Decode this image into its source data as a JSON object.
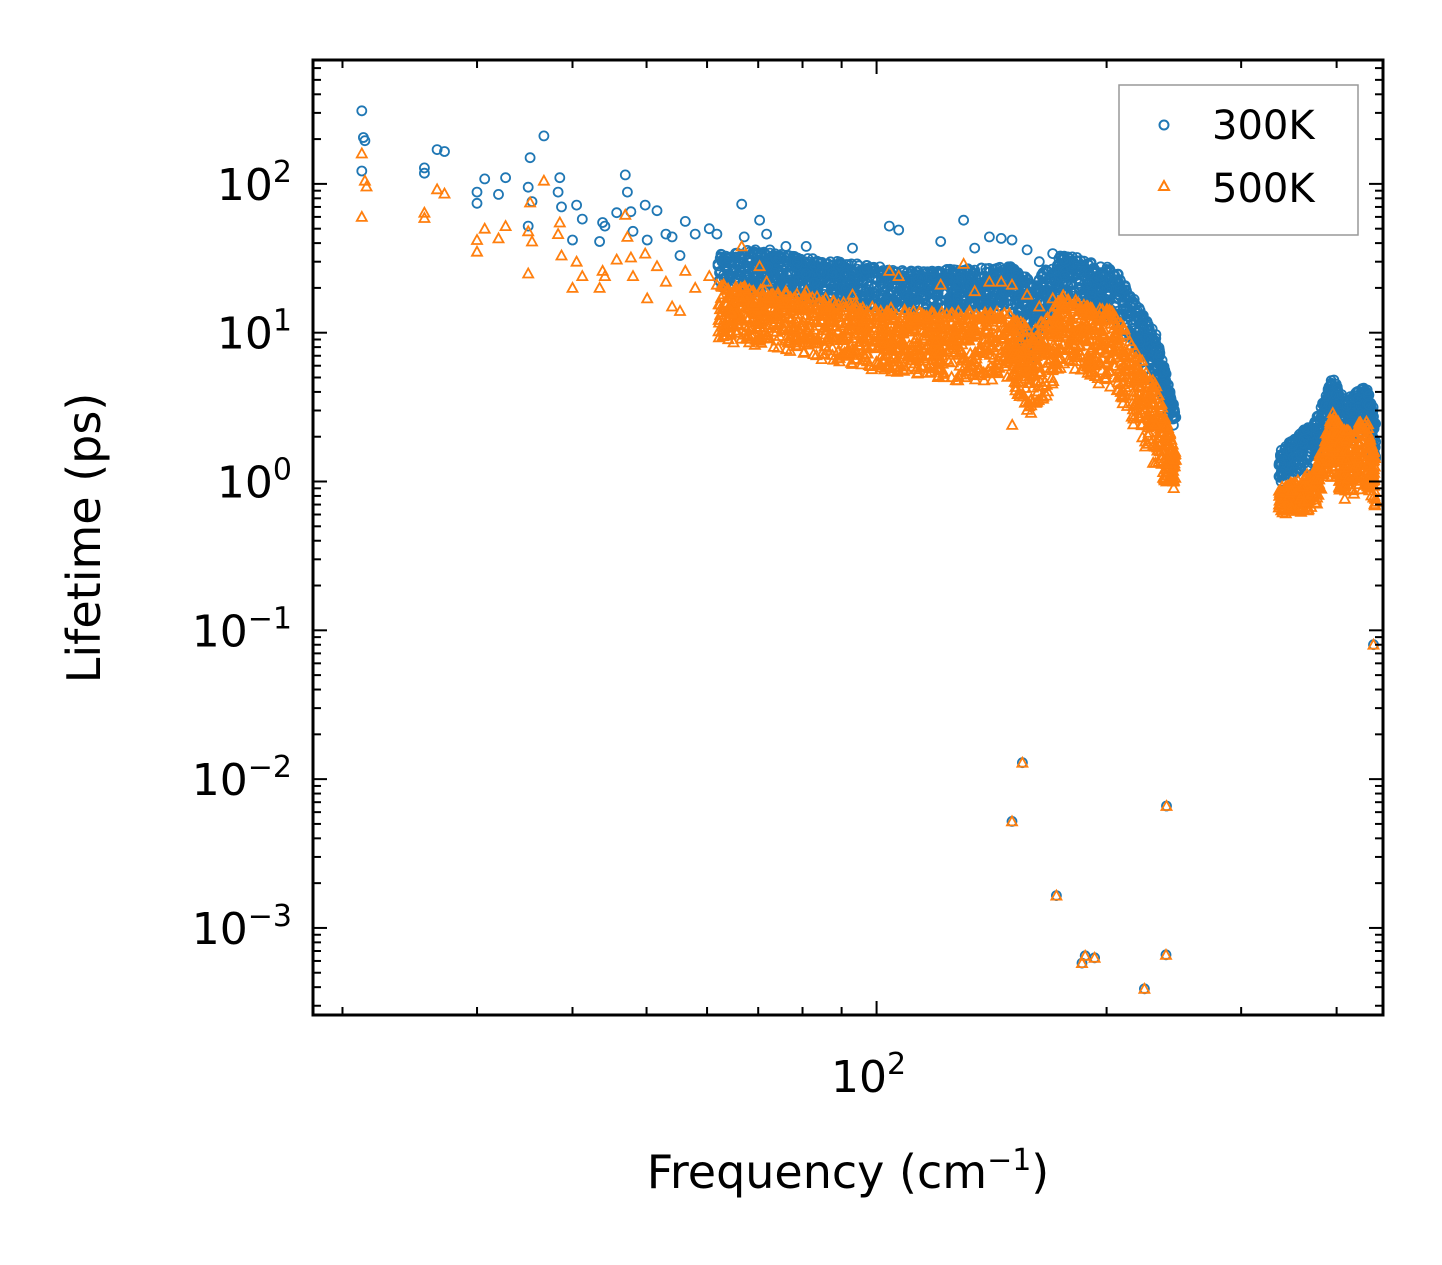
{
  "chart_data": {
    "type": "scatter",
    "title": "",
    "xlabel": "Frequency (cm",
    "xlabel_sup": "−1",
    "xlabel_suffix": ")",
    "ylabel": "Lifetime (ps)",
    "xscale": "log",
    "yscale": "log",
    "xlim": [
      18.3,
      460
    ],
    "ylim": [
      0.00026,
      680
    ],
    "x_ticks": [
      {
        "value": 100,
        "base": "10",
        "exp": "2"
      }
    ],
    "y_ticks": [
      {
        "value": 0.001,
        "base": "10",
        "exp": "−3"
      },
      {
        "value": 0.01,
        "base": "10",
        "exp": "−2"
      },
      {
        "value": 0.1,
        "base": "10",
        "exp": "−1"
      },
      {
        "value": 1,
        "base": "10",
        "exp": "0"
      },
      {
        "value": 10,
        "base": "10",
        "exp": "1"
      },
      {
        "value": 100,
        "base": "10",
        "exp": "2"
      }
    ],
    "legend_position": "top-right",
    "colors": {
      "300K": "#1f77b4",
      "500K": "#ff7f0e"
    },
    "series": [
      {
        "name": "300K",
        "marker": "circle",
        "color": "#1f77b4",
        "points": [
          [
            21.2,
            310
          ],
          [
            21.3,
            205
          ],
          [
            21.4,
            195
          ],
          [
            21.2,
            122
          ],
          [
            25.6,
            128
          ],
          [
            25.6,
            118
          ],
          [
            26.6,
            170
          ],
          [
            27.2,
            165
          ],
          [
            30.0,
            88
          ],
          [
            30.0,
            74
          ],
          [
            30.7,
            108
          ],
          [
            32.0,
            85
          ],
          [
            32.7,
            110
          ],
          [
            35.0,
            95
          ],
          [
            35.2,
            150
          ],
          [
            35.4,
            76
          ],
          [
            35.0,
            52
          ],
          [
            36.7,
            210
          ],
          [
            38.5,
            110
          ],
          [
            38.3,
            88
          ],
          [
            38.7,
            70
          ],
          [
            40.0,
            42
          ],
          [
            40.5,
            72
          ],
          [
            41.2,
            58
          ],
          [
            43.4,
            41
          ],
          [
            43.8,
            55
          ],
          [
            44.1,
            52
          ],
          [
            45.7,
            64
          ],
          [
            46.9,
            115
          ],
          [
            47.2,
            88
          ],
          [
            47.7,
            65
          ],
          [
            48.0,
            48
          ],
          [
            49.8,
            72
          ],
          [
            50.1,
            42
          ],
          [
            51.6,
            66
          ],
          [
            53.0,
            46
          ],
          [
            54.0,
            44
          ],
          [
            55.3,
            33
          ],
          [
            56.2,
            56
          ],
          [
            57.9,
            46
          ],
          [
            60.4,
            50
          ],
          [
            61.8,
            46
          ],
          [
            66.6,
            73
          ],
          [
            67.1,
            44
          ],
          [
            69.4,
            36
          ],
          [
            70.3,
            57
          ],
          [
            71.8,
            46
          ],
          [
            72.5,
            36
          ],
          [
            76.1,
            38
          ],
          [
            78.7,
            30
          ],
          [
            80.9,
            38
          ],
          [
            85.8,
            29
          ],
          [
            93.0,
            37
          ],
          [
            97.0,
            27
          ],
          [
            103.9,
            52
          ],
          [
            106.9,
            49
          ],
          [
            121.3,
            41
          ],
          [
            130.0,
            57
          ],
          [
            134.4,
            37
          ],
          [
            140.5,
            44
          ],
          [
            145.6,
            43
          ],
          [
            150.4,
            42
          ],
          [
            157.4,
            36
          ],
          [
            163.3,
            30
          ],
          [
            170.0,
            34
          ],
          [
            176.5,
            30
          ],
          [
            182.9,
            32
          ],
          [
            190.0,
            25
          ],
          [
            196.4,
            24
          ],
          [
            206.3,
            17
          ],
          [
            220.0,
            10
          ],
          [
            232.1,
            5.2
          ],
          [
            240.3,
            2.9
          ],
          [
            246.4,
            2.7
          ],
          [
            150.4,
            0.0052
          ],
          [
            155.2,
            0.0129
          ],
          [
            171.9,
            0.00165
          ],
          [
            185.7,
            0.00058
          ],
          [
            187.5,
            0.00065
          ],
          [
            192.9,
            0.00063
          ],
          [
            224.1,
            0.00039
          ],
          [
            239.2,
            0.00066
          ],
          [
            239.6,
            0.0066
          ],
          [
            447.0,
            0.08
          ]
        ],
        "dense_bands": [
          {
            "x_range": [
              62,
              112
            ],
            "y_start": [
              38,
              20
            ],
            "y_end": [
              26,
              13
            ]
          },
          {
            "x_range": [
              112,
              150
            ],
            "y_start": [
              26,
              13
            ],
            "y_end": [
              28,
              14
            ]
          },
          {
            "x_range": [
              150,
              160
            ],
            "y_start": [
              28,
              14
            ],
            "y_end": [
              22,
              6
            ]
          },
          {
            "x_range": [
              160,
              175
            ],
            "y_start": [
              22,
              6
            ],
            "y_end": [
              34,
              16
            ]
          },
          {
            "x_range": [
              175,
              205
            ],
            "y_start": [
              34,
              16
            ],
            "y_end": [
              27,
              12
            ]
          },
          {
            "x_range": [
              205,
              232
            ],
            "y_start": [
              27,
              12
            ],
            "y_end": [
              10,
              4.5
            ]
          },
          {
            "x_range": [
              232,
              246
            ],
            "y_start": [
              10,
              4.5
            ],
            "y_end": [
              3.0,
              2.2
            ]
          },
          {
            "x_range": [
              336,
              375
            ],
            "y_start": [
              1.6,
              0.95
            ],
            "y_end": [
              2.6,
              1.3
            ]
          },
          {
            "x_range": [
              375,
              395
            ],
            "y_start": [
              2.6,
              1.3
            ],
            "y_end": [
              5.0,
              2.5
            ]
          },
          {
            "x_range": [
              395,
              410
            ],
            "y_start": [
              5.0,
              2.5
            ],
            "y_end": [
              3.6,
              1.8
            ]
          },
          {
            "x_range": [
              410,
              438
            ],
            "y_start": [
              3.6,
              1.8
            ],
            "y_end": [
              4.4,
              2.2
            ]
          },
          {
            "x_range": [
              438,
              450
            ],
            "y_start": [
              4.4,
              2.2
            ],
            "y_end": [
              2.8,
              1.1
            ]
          }
        ]
      },
      {
        "name": "500K",
        "marker": "triangle",
        "color": "#ff7f0e",
        "points": [
          [
            21.2,
            160
          ],
          [
            21.4,
            105
          ],
          [
            21.5,
            96
          ],
          [
            21.2,
            60
          ],
          [
            25.6,
            64
          ],
          [
            25.6,
            59
          ],
          [
            26.6,
            92
          ],
          [
            27.2,
            86
          ],
          [
            30.0,
            42
          ],
          [
            30.0,
            35
          ],
          [
            30.7,
            50
          ],
          [
            32.0,
            43
          ],
          [
            32.7,
            52
          ],
          [
            35.0,
            48
          ],
          [
            35.2,
            75
          ],
          [
            35.4,
            41
          ],
          [
            35.0,
            25
          ],
          [
            36.7,
            105
          ],
          [
            38.5,
            55
          ],
          [
            38.3,
            46
          ],
          [
            38.7,
            33
          ],
          [
            40.0,
            20
          ],
          [
            40.5,
            30
          ],
          [
            41.2,
            24
          ],
          [
            43.4,
            20
          ],
          [
            43.8,
            26
          ],
          [
            44.1,
            24
          ],
          [
            45.7,
            31
          ],
          [
            46.9,
            62
          ],
          [
            47.2,
            44
          ],
          [
            47.7,
            32
          ],
          [
            48.0,
            24
          ],
          [
            49.8,
            34
          ],
          [
            50.1,
            17
          ],
          [
            51.6,
            28
          ],
          [
            53.0,
            22
          ],
          [
            54.0,
            15
          ],
          [
            55.3,
            14
          ],
          [
            56.2,
            26
          ],
          [
            57.9,
            20
          ],
          [
            60.4,
            24
          ],
          [
            61.8,
            21
          ],
          [
            66.6,
            38
          ],
          [
            67.1,
            20
          ],
          [
            69.4,
            16
          ],
          [
            70.3,
            28
          ],
          [
            71.8,
            22
          ],
          [
            72.5,
            17
          ],
          [
            76.1,
            19
          ],
          [
            78.7,
            15
          ],
          [
            80.9,
            19
          ],
          [
            85.8,
            14
          ],
          [
            93.0,
            18
          ],
          [
            97.0,
            13
          ],
          [
            103.9,
            26
          ],
          [
            106.9,
            24
          ],
          [
            121.3,
            21
          ],
          [
            130.0,
            29
          ],
          [
            134.4,
            19
          ],
          [
            140.5,
            22
          ],
          [
            145.6,
            22
          ],
          [
            150.4,
            21
          ],
          [
            150.5,
            2.4
          ],
          [
            157.4,
            18
          ],
          [
            163.3,
            15
          ],
          [
            170.0,
            17
          ],
          [
            176.5,
            15
          ],
          [
            182.9,
            16
          ],
          [
            190.0,
            12
          ],
          [
            196.4,
            12
          ],
          [
            206.3,
            8.5
          ],
          [
            220.0,
            5
          ],
          [
            232.1,
            2.4
          ],
          [
            240.3,
            1.5
          ],
          [
            246.4,
            1.4
          ],
          [
            150.4,
            0.0052
          ],
          [
            155.2,
            0.0129
          ],
          [
            171.9,
            0.00165
          ],
          [
            185.7,
            0.00058
          ],
          [
            187.5,
            0.00065
          ],
          [
            192.9,
            0.00063
          ],
          [
            224.1,
            0.00039
          ],
          [
            239.2,
            0.00066
          ],
          [
            239.6,
            0.0066
          ],
          [
            447.0,
            0.08
          ]
        ],
        "dense_bands": [
          {
            "x_range": [
              62,
              112
            ],
            "y_start": [
              22,
              9
            ],
            "y_end": [
              14,
              5
            ]
          },
          {
            "x_range": [
              112,
              150
            ],
            "y_start": [
              14,
              5
            ],
            "y_end": [
              14,
              4.5
            ]
          },
          {
            "x_range": [
              150,
              160
            ],
            "y_start": [
              14,
              4.5
            ],
            "y_end": [
              10,
              2.5
            ]
          },
          {
            "x_range": [
              160,
              175
            ],
            "y_start": [
              10,
              2.5
            ],
            "y_end": [
              18,
              6
            ]
          },
          {
            "x_range": [
              175,
              205
            ],
            "y_start": [
              18,
              6
            ],
            "y_end": [
              14,
              4
            ]
          },
          {
            "x_range": [
              205,
              232
            ],
            "y_start": [
              14,
              4
            ],
            "y_end": [
              4.5,
              1.2
            ]
          },
          {
            "x_range": [
              232,
              246
            ],
            "y_start": [
              4.5,
              1.2
            ],
            "y_end": [
              1.6,
              0.8
            ]
          },
          {
            "x_range": [
              336,
              375
            ],
            "y_start": [
              0.9,
              0.58
            ],
            "y_end": [
              1.2,
              0.65
            ]
          },
          {
            "x_range": [
              375,
              395
            ],
            "y_start": [
              1.2,
              0.65
            ],
            "y_end": [
              3.0,
              1.1
            ]
          },
          {
            "x_range": [
              395,
              410
            ],
            "y_start": [
              3.0,
              1.1
            ],
            "y_end": [
              2.2,
              0.75
            ]
          },
          {
            "x_range": [
              410,
              438
            ],
            "y_start": [
              2.2,
              0.75
            ],
            "y_end": [
              2.7,
              0.9
            ]
          },
          {
            "x_range": [
              438,
              450
            ],
            "y_start": [
              2.7,
              0.9
            ],
            "y_end": [
              1.4,
              0.65
            ]
          }
        ]
      }
    ]
  }
}
